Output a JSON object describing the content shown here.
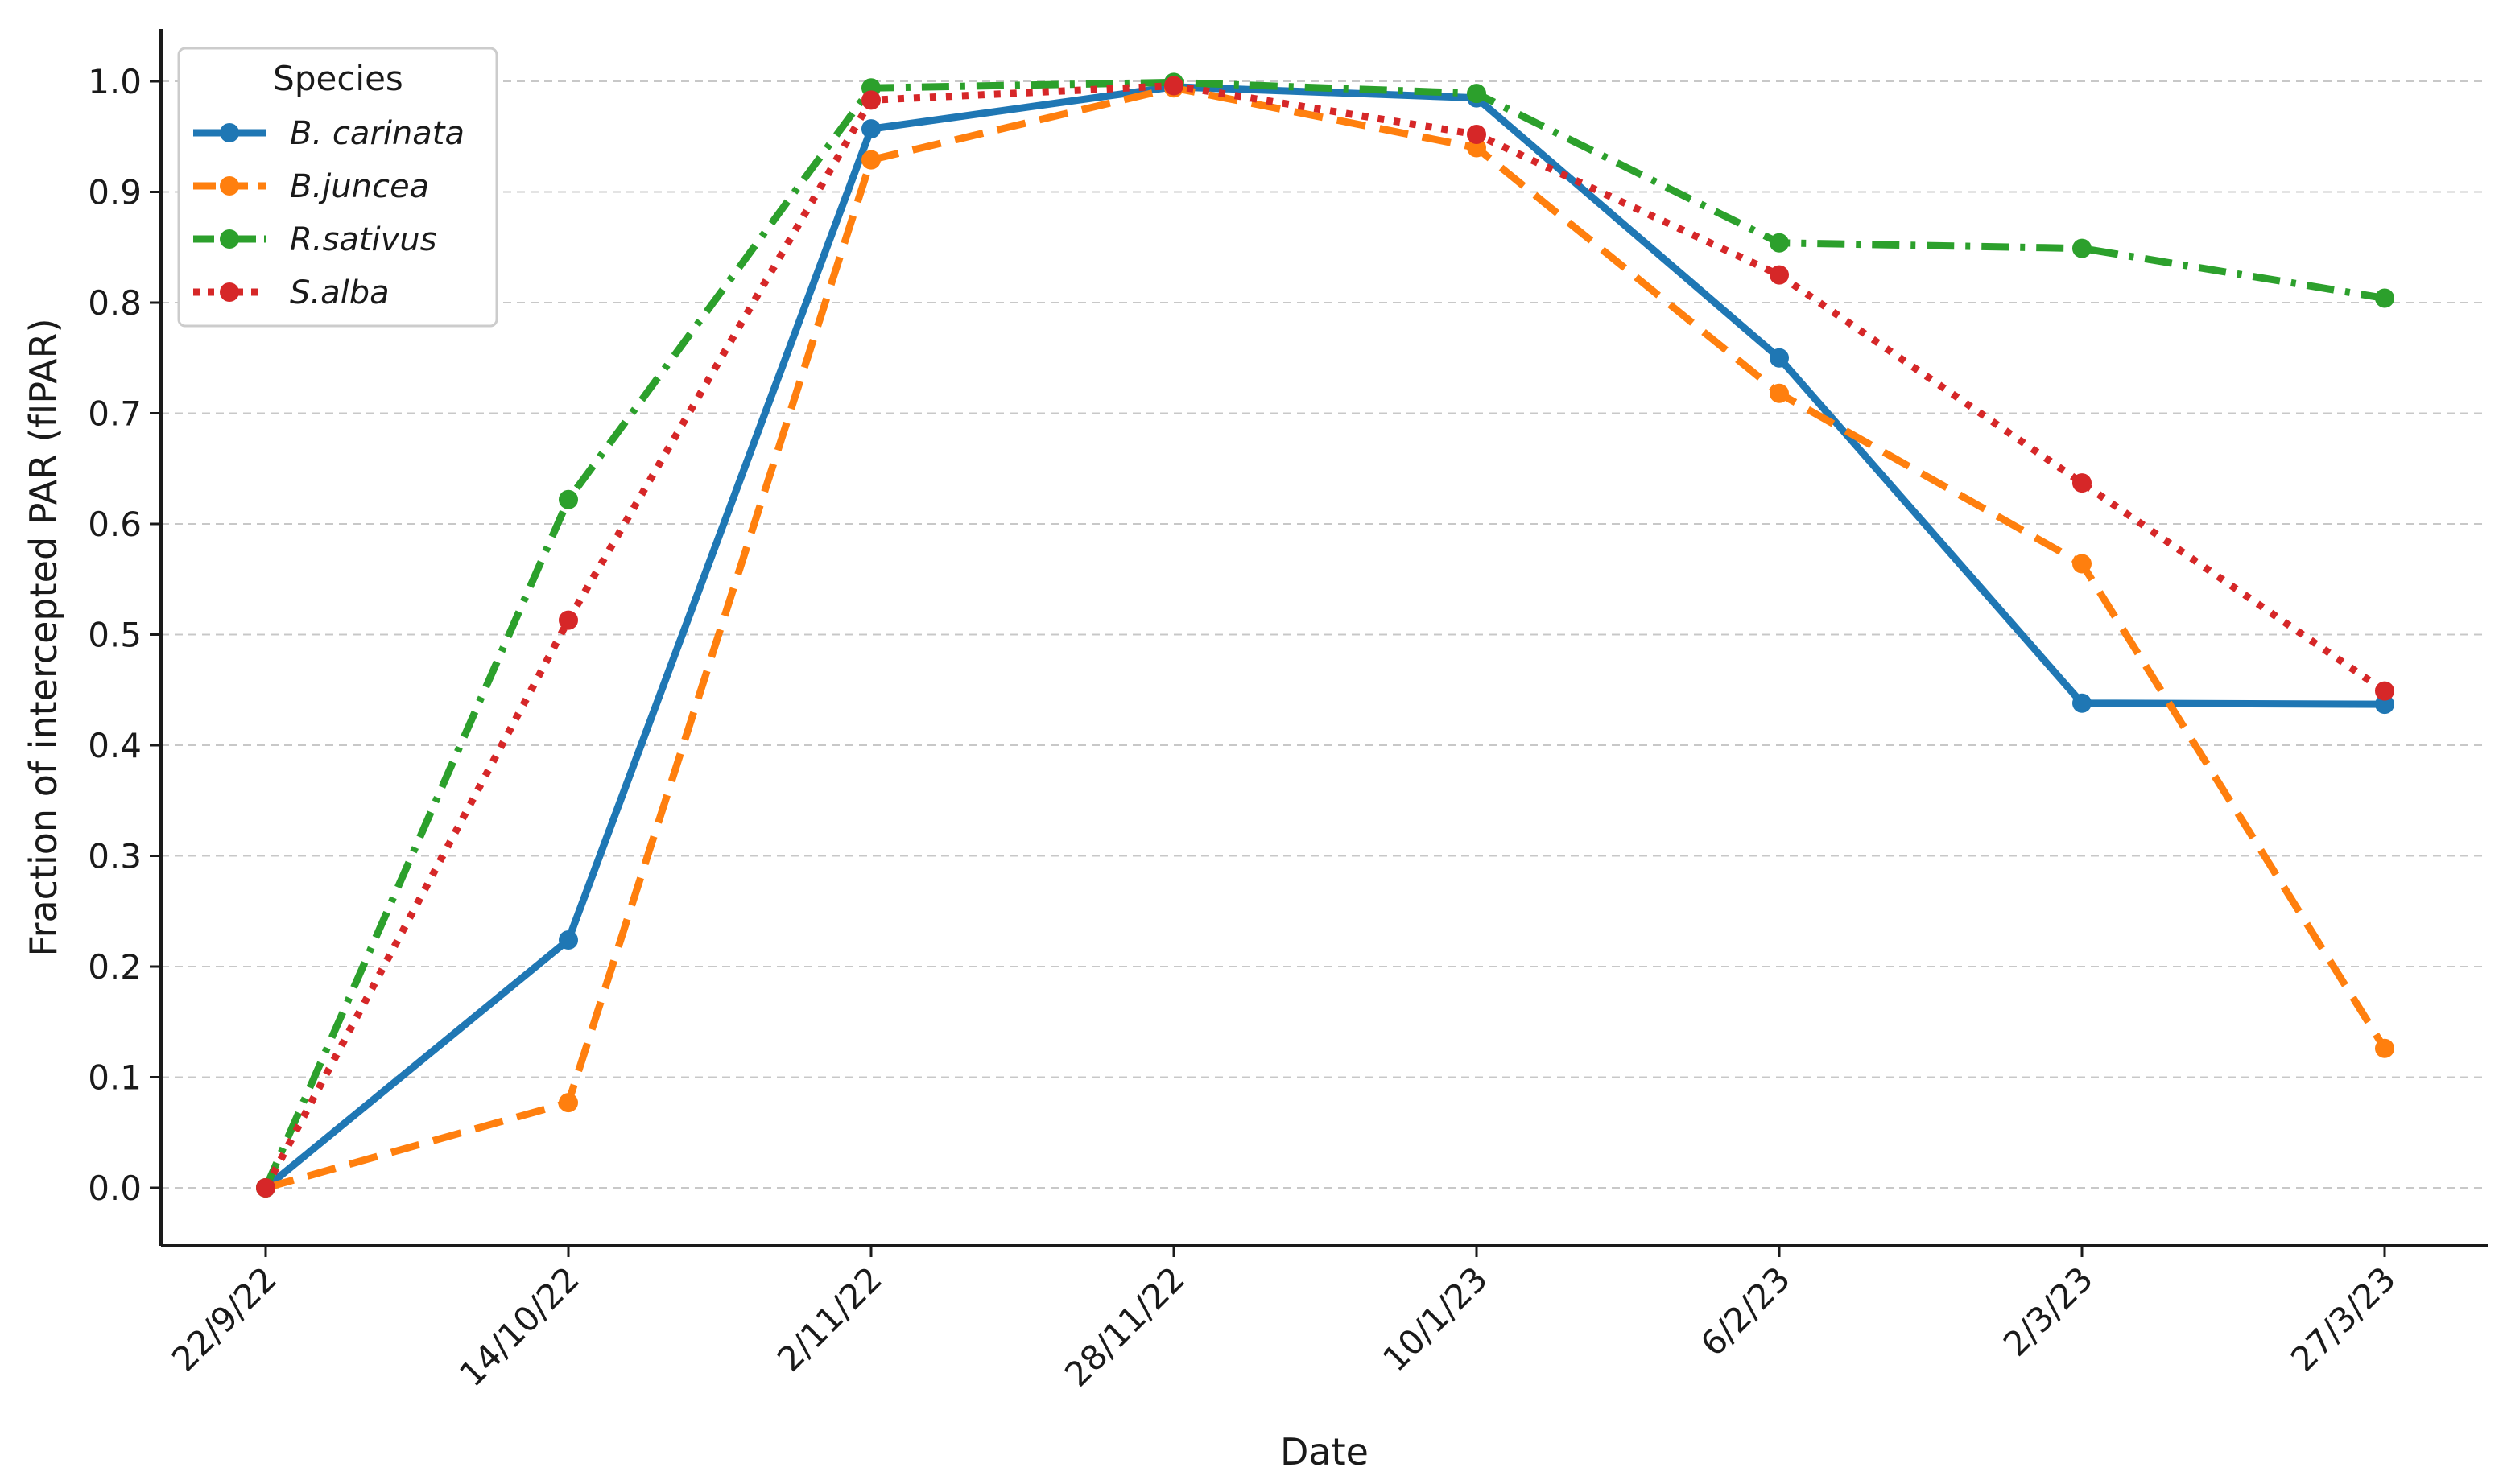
{
  "chart_data": {
    "type": "line",
    "title": "",
    "xlabel": "Date",
    "ylabel": "Fraction of intercepted PAR (fIPAR)",
    "categories": [
      "22/9/22",
      "14/10/22",
      "2/11/22",
      "28/11/22",
      "10/1/23",
      "6/2/23",
      "2/3/23",
      "27/3/23"
    ],
    "ylim": [
      -0.05,
      1.05
    ],
    "yticks": [
      0.0,
      0.1,
      0.2,
      0.3,
      0.4,
      0.5,
      0.6,
      0.7,
      0.8,
      0.9,
      1.0
    ],
    "ytick_labels": [
      "0.0",
      "0.1",
      "0.2",
      "0.3",
      "0.4",
      "0.5",
      "0.6",
      "0.7",
      "0.8",
      "0.9",
      "1.0"
    ],
    "grid": "horizontal dashed",
    "legend": {
      "title": "Species",
      "placement": "top-left"
    },
    "series": [
      {
        "name": "B. carinata",
        "color": "#1f77b4",
        "line_style": "solid",
        "values": [
          0.0,
          0.224,
          0.957,
          0.995,
          0.985,
          0.75,
          0.438,
          0.437
        ]
      },
      {
        "name": "B.juncea",
        "color": "#ff7f0e",
        "line_style": "dashed",
        "values": [
          0.0,
          0.077,
          0.929,
          0.994,
          0.94,
          0.718,
          0.564,
          0.126
        ]
      },
      {
        "name": "R.sativus",
        "color": "#2ca02c",
        "line_style": "dash-dot",
        "values": [
          0.0,
          0.622,
          0.994,
          0.999,
          0.989,
          0.854,
          0.849,
          0.804
        ]
      },
      {
        "name": "S.alba",
        "color": "#d62728",
        "line_style": "dotted",
        "values": [
          0.0,
          0.513,
          0.983,
          0.996,
          0.952,
          0.825,
          0.637,
          0.449
        ]
      }
    ]
  }
}
